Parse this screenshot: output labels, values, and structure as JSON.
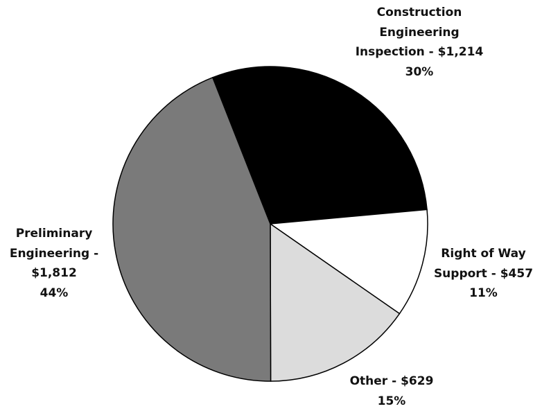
{
  "chart_data": {
    "type": "pie",
    "categories": [
      "Construction Engineering Inspection -",
      "Right of Way Support -",
      "Other -",
      "Preliminary Engineering -"
    ],
    "values": [
      1214,
      457,
      629,
      1812
    ],
    "value_labels": [
      "$1,214",
      "$457",
      "$629",
      "$1,812"
    ],
    "percent_labels": [
      "30%",
      "11%",
      "15%",
      "44%"
    ],
    "colors": [
      "#000000",
      "#ffffff",
      "#dcdcdc",
      "#7a7a7a"
    ]
  }
}
